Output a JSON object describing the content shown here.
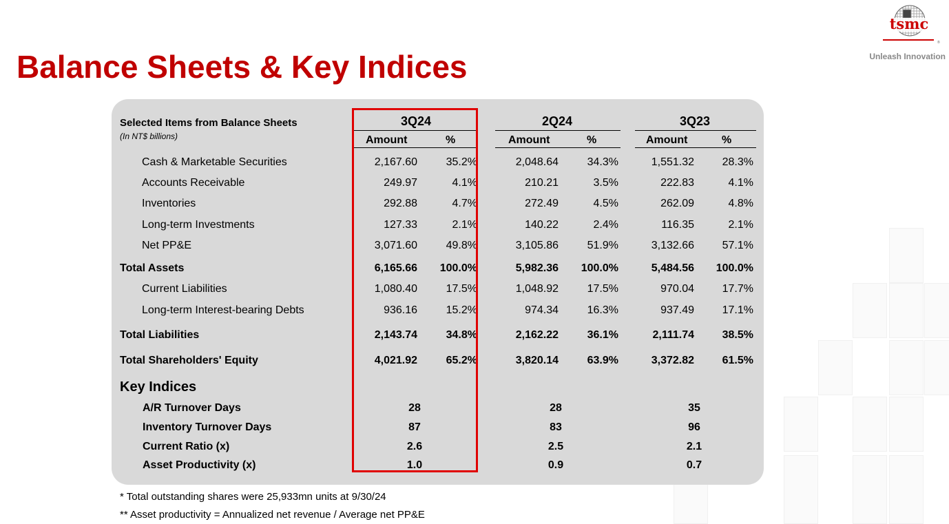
{
  "title": "Balance Sheets & Key Indices",
  "logo": {
    "text": "tsmc",
    "tagline": "Unleash Innovation"
  },
  "table": {
    "header_title": "Selected Items from Balance Sheets",
    "header_subtitle": "(In NT$ billions)",
    "periods": [
      "3Q24",
      "2Q24",
      "3Q23"
    ],
    "col_amount": "Amount",
    "col_pct": "%",
    "rows": [
      {
        "label": "Cash & Marketable Securities",
        "bold": false,
        "values": [
          [
            "2,167.60",
            "35.2%"
          ],
          [
            "2,048.64",
            "34.3%"
          ],
          [
            "1,551.32",
            "28.3%"
          ]
        ]
      },
      {
        "label": "Accounts Receivable",
        "bold": false,
        "values": [
          [
            "249.97",
            "4.1%"
          ],
          [
            "210.21",
            "3.5%"
          ],
          [
            "222.83",
            "4.1%"
          ]
        ]
      },
      {
        "label": "Inventories",
        "bold": false,
        "values": [
          [
            "292.88",
            "4.7%"
          ],
          [
            "272.49",
            "4.5%"
          ],
          [
            "262.09",
            "4.8%"
          ]
        ]
      },
      {
        "label": "Long-term Investments",
        "bold": false,
        "values": [
          [
            "127.33",
            "2.1%"
          ],
          [
            "140.22",
            "2.4%"
          ],
          [
            "116.35",
            "2.1%"
          ]
        ]
      },
      {
        "label": "Net PP&E",
        "bold": false,
        "values": [
          [
            "3,071.60",
            "49.8%"
          ],
          [
            "3,105.86",
            "51.9%"
          ],
          [
            "3,132.66",
            "57.1%"
          ]
        ]
      },
      {
        "label": "Total Assets",
        "bold": true,
        "values": [
          [
            "6,165.66",
            "100.0%"
          ],
          [
            "5,982.36",
            "100.0%"
          ],
          [
            "5,484.56",
            "100.0%"
          ]
        ]
      },
      {
        "label": "Current Liabilities",
        "bold": false,
        "values": [
          [
            "1,080.40",
            "17.5%"
          ],
          [
            "1,048.92",
            "17.5%"
          ],
          [
            "970.04",
            "17.7%"
          ]
        ]
      },
      {
        "label": "Long-term Interest-bearing Debts",
        "bold": false,
        "values": [
          [
            "936.16",
            "15.2%"
          ],
          [
            "974.34",
            "16.3%"
          ],
          [
            "937.49",
            "17.1%"
          ]
        ]
      },
      {
        "label": "Total Liabilities",
        "bold": true,
        "values": [
          [
            "2,143.74",
            "34.8%"
          ],
          [
            "2,162.22",
            "36.1%"
          ],
          [
            "2,111.74",
            "38.5%"
          ]
        ]
      },
      {
        "label": "Total Shareholders' Equity",
        "bold": true,
        "values": [
          [
            "4,021.92",
            "65.2%"
          ],
          [
            "3,820.14",
            "63.9%"
          ],
          [
            "3,372.82",
            "61.5%"
          ]
        ]
      }
    ]
  },
  "key_indices": {
    "title": "Key Indices",
    "rows": [
      {
        "label": "A/R Turnover Days",
        "values": [
          "28",
          "28",
          "35"
        ]
      },
      {
        "label": "Inventory Turnover Days",
        "values": [
          "87",
          "83",
          "96"
        ]
      },
      {
        "label": "Current Ratio (x)",
        "values": [
          "2.6",
          "2.5",
          "2.1"
        ]
      },
      {
        "label": "Asset Productivity (x)",
        "values": [
          "1.0",
          "0.9",
          "0.7"
        ]
      }
    ]
  },
  "footnotes": [
    "*  Total outstanding shares were 25,933mn units at 9/30/24",
    "** Asset productivity = Annualized net revenue / Average net PP&E"
  ],
  "colors": {
    "title_red": "#c00000",
    "highlight_red": "#e00000",
    "panel_gray": "#d9d9d9"
  }
}
